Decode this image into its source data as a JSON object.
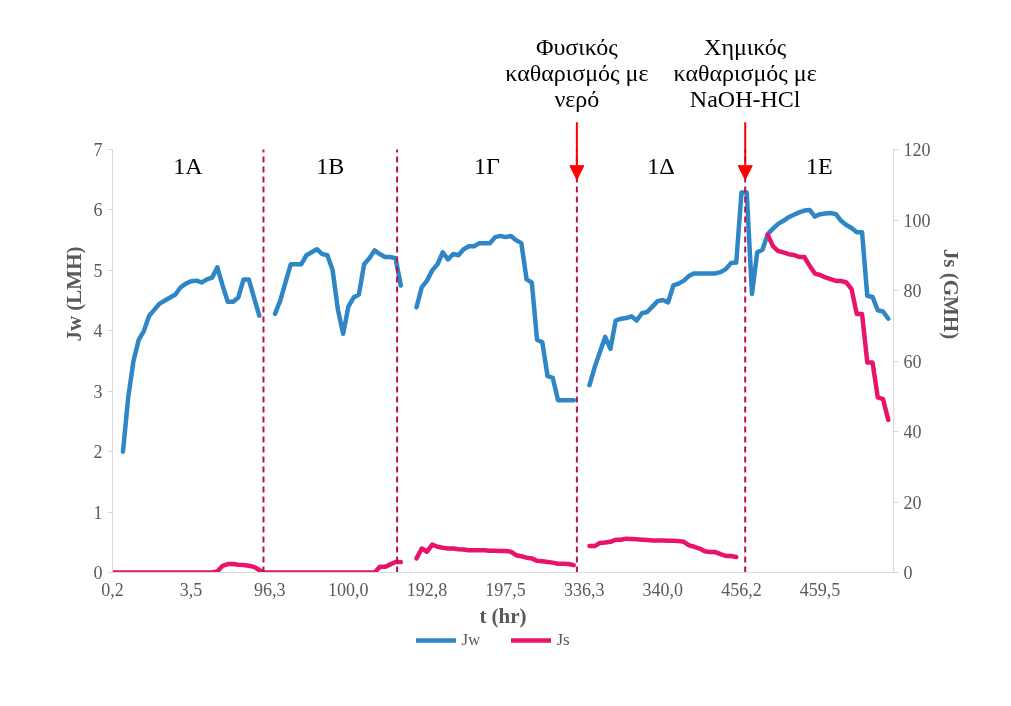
{
  "chart_data": {
    "type": "line",
    "xlabel": "t (hr)",
    "ylabel": "Jw (LMH)",
    "y2label": "Js (GMH)",
    "categories": [
      "0,2",
      null,
      null,
      null,
      null,
      null,
      null,
      null,
      null,
      null,
      null,
      null,
      null,
      null,
      null,
      "3,5",
      null,
      null,
      null,
      null,
      null,
      null,
      null,
      null,
      null,
      null,
      null,
      null,
      null,
      null,
      "96,3",
      null,
      null,
      null,
      null,
      null,
      null,
      null,
      null,
      null,
      null,
      null,
      null,
      null,
      null,
      "100,0",
      null,
      null,
      null,
      null,
      null,
      null,
      null,
      null,
      null,
      null,
      null,
      null,
      null,
      null,
      "192,8",
      null,
      null,
      null,
      null,
      null,
      null,
      null,
      null,
      null,
      null,
      null,
      null,
      null,
      null,
      "197,5",
      null,
      null,
      null,
      null,
      null,
      null,
      null,
      null,
      null,
      null,
      null,
      null,
      null,
      null,
      "336,3",
      null,
      null,
      null,
      null,
      null,
      null,
      null,
      null,
      null,
      null,
      null,
      null,
      null,
      null,
      "340,0",
      null,
      null,
      null,
      null,
      null,
      null,
      null,
      null,
      null,
      null,
      null,
      null,
      null,
      null,
      "456,2",
      null,
      null,
      null,
      null,
      null,
      null,
      null,
      null,
      null,
      null,
      null,
      null,
      null,
      null,
      "459,5",
      null,
      null,
      null,
      null,
      null,
      null,
      null,
      null,
      null,
      null,
      null,
      null,
      null,
      null
    ],
    "series": [
      {
        "name": "Jw",
        "color": "#2e86c6",
        "values": [
          null,
          null,
          2.0,
          2.9,
          3.5,
          3.85,
          4.0,
          4.25,
          4.35,
          4.45,
          4.5,
          4.55,
          4.6,
          4.72,
          4.78,
          4.82,
          4.83,
          4.8,
          4.85,
          4.88,
          5.05,
          4.75,
          4.48,
          4.48,
          4.55,
          4.85,
          4.85,
          4.55,
          4.25,
          null,
          null,
          4.28,
          4.5,
          4.8,
          5.1,
          5.1,
          5.1,
          5.25,
          5.3,
          5.35,
          5.27,
          5.25,
          5.0,
          4.35,
          3.95,
          4.4,
          4.55,
          4.6,
          5.1,
          5.2,
          5.33,
          5.27,
          5.22,
          5.22,
          5.2,
          4.75,
          null,
          null,
          4.39,
          4.72,
          4.83,
          5.0,
          5.1,
          5.3,
          5.18,
          5.27,
          5.25,
          5.35,
          5.4,
          5.4,
          5.45,
          5.45,
          5.45,
          5.55,
          5.57,
          5.55,
          5.57,
          5.5,
          5.45,
          4.85,
          4.8,
          3.85,
          3.81,
          3.25,
          3.22,
          2.85,
          2.85,
          2.85,
          2.85,
          null,
          null,
          3.1,
          3.4,
          3.65,
          3.9,
          3.7,
          4.17,
          4.2,
          4.21,
          4.24,
          4.17,
          4.29,
          4.31,
          4.4,
          4.49,
          4.51,
          4.47,
          4.75,
          4.78,
          4.83,
          4.91,
          4.95,
          4.95,
          4.95,
          4.95,
          4.95,
          4.97,
          5.02,
          5.12,
          5.13,
          6.29,
          6.29,
          4.61,
          5.3,
          5.34,
          5.6,
          5.69,
          5.77,
          5.82,
          5.88,
          5.92,
          5.96,
          5.99,
          6.0,
          5.89,
          5.93,
          5.94,
          5.95,
          5.93,
          5.82,
          5.75,
          5.7,
          5.63,
          5.63,
          4.58,
          4.56,
          4.34,
          4.32,
          4.2,
          null
        ]
      },
      {
        "name": "Js",
        "color": "#e8146c",
        "axis": "y2",
        "values": [
          0,
          0,
          0,
          0,
          0,
          0,
          0,
          0,
          0,
          0,
          0,
          0,
          0,
          0,
          0,
          0,
          0,
          0,
          0,
          0,
          0.3,
          1.9,
          2.4,
          2.4,
          2.2,
          2.1,
          1.9,
          1.6,
          0.7,
          0,
          0,
          0,
          0,
          0,
          0,
          0,
          0,
          0,
          0,
          0,
          0,
          0,
          0,
          0,
          0,
          0,
          0,
          0,
          0,
          0,
          0,
          1.6,
          1.6,
          2.3,
          3.0,
          3.0,
          null,
          null,
          4.0,
          6.8,
          5.9,
          7.9,
          7.3,
          7.0,
          6.8,
          6.8,
          6.6,
          6.5,
          6.3,
          6.3,
          6.3,
          6.3,
          6.2,
          6.2,
          6.1,
          6.1,
          5.9,
          4.9,
          4.6,
          4.2,
          4.0,
          3.3,
          3.2,
          3.0,
          2.8,
          2.5,
          2.5,
          2.4,
          2.1,
          null,
          null,
          7.5,
          7.5,
          8.4,
          8.5,
          8.7,
          9.3,
          9.3,
          9.6,
          9.5,
          9.4,
          9.3,
          9.2,
          9.1,
          9.1,
          9.1,
          9.0,
          9.0,
          8.9,
          8.7,
          7.7,
          7.3,
          6.8,
          6.0,
          5.8,
          5.8,
          5.2,
          4.7,
          4.7,
          4.4,
          null,
          null,
          null,
          null,
          null,
          95.8,
          92.6,
          91.2,
          90.8,
          90.3,
          90.1,
          89.5,
          89.5,
          87.0,
          84.8,
          84.4,
          83.7,
          83.2,
          82.7,
          82.7,
          82.3,
          80.4,
          73.3,
          73.3,
          59.6,
          59.6,
          49.7,
          49.2,
          43.3,
          null
        ]
      }
    ],
    "ylim": [
      0,
      7
    ],
    "yticks": [
      0,
      1,
      2,
      3,
      4,
      5,
      6,
      7
    ],
    "y2lim": [
      0,
      120
    ],
    "y2ticks": [
      0,
      20,
      40,
      60,
      80,
      100,
      120
    ],
    "annotations": [
      "1A",
      "1B",
      "1Γ",
      "1Δ",
      "1E",
      "Φυσικός\nκαθαρισμός με\nνερό",
      "Χημικός\nκαθαρισμός με\nNaOH-HCl"
    ],
    "legend": "bottom",
    "line_style": "solid"
  }
}
